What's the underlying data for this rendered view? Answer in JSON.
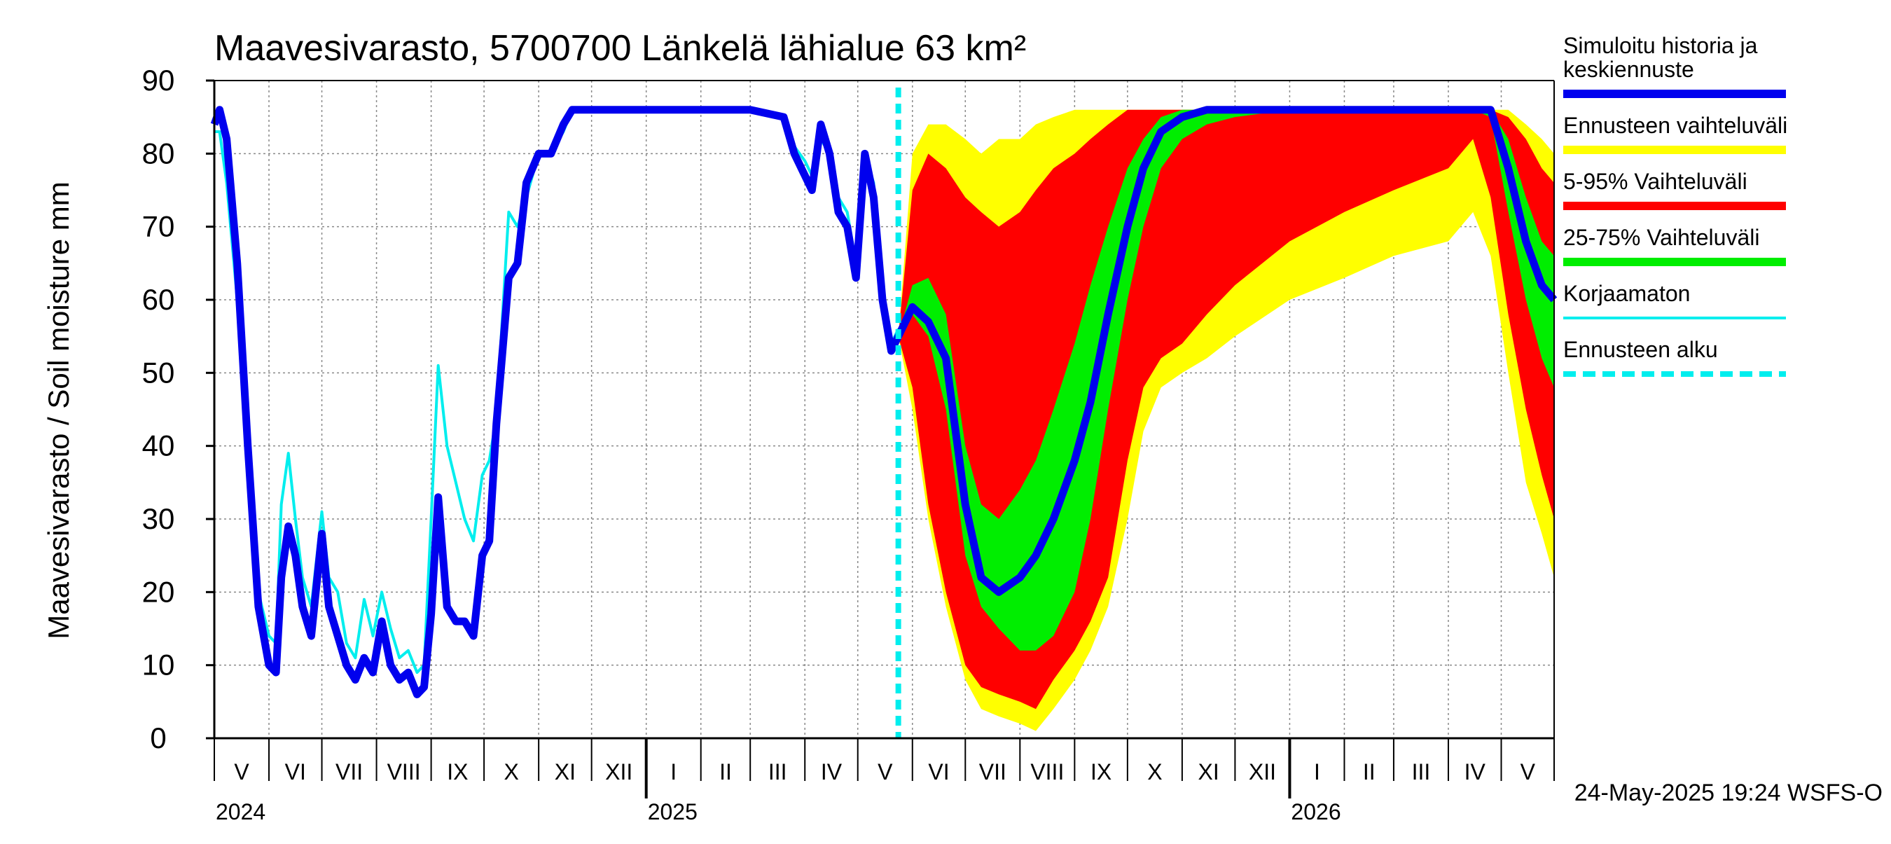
{
  "chart_data": {
    "type": "area",
    "title": "Maavesivarasto, 5700700 Länkelä lähialue 63 km²",
    "ylabel": "Maavesivarasto / Soil moisture   mm",
    "xlabel": "",
    "ylim": [
      0,
      90
    ],
    "xlim": [
      "2024-05-01",
      "2026-05-31"
    ],
    "grid": true,
    "y_ticks": [
      0,
      10,
      20,
      30,
      40,
      50,
      60,
      70,
      80,
      90
    ],
    "month_labels": [
      "V",
      "VI",
      "VII",
      "VIII",
      "IX",
      "X",
      "XI",
      "XII",
      "I",
      "II",
      "III",
      "IV",
      "V",
      "VI",
      "VII",
      "VIII",
      "IX",
      "X",
      "XI",
      "XII",
      "I",
      "II",
      "III",
      "IV",
      "V"
    ],
    "year_labels": [
      "2024",
      "2025",
      "2026"
    ],
    "forecast_start": "2025-05-24",
    "timestamp": "24-May-2025 19:24 WSFS-O",
    "colors": {
      "history": "#0000ee",
      "uncorrected": "#00eeee",
      "range_full": "#ffff00",
      "range_5_95": "#ff0000",
      "range_25_75": "#00ee00",
      "forecast_start": "#00eeee",
      "grid": "#888888"
    },
    "legend_position": "right",
    "legend": [
      {
        "label": "Simuloitu historia ja keskiennuste",
        "lines": [
          "Simuloitu historia ja",
          "keskiennuste"
        ],
        "color": "#0000ee",
        "style": "solid"
      },
      {
        "label": "Ennusteen vaihteluväli",
        "lines": [
          "Ennusteen vaihteluväli"
        ],
        "color": "#ffff00",
        "style": "solid"
      },
      {
        "label": "5-95% Vaihteluväli",
        "lines": [
          "5-95% Vaihteluväli"
        ],
        "color": "#ff0000",
        "style": "solid"
      },
      {
        "label": "25-75% Vaihteluväli",
        "lines": [
          "25-75% Vaihteluväli"
        ],
        "color": "#00ee00",
        "style": "solid"
      },
      {
        "label": "Korjaamaton",
        "lines": [
          "Korjaamaton"
        ],
        "color": "#00eeee",
        "style": "thin"
      },
      {
        "label": "Ennusteen alku",
        "lines": [
          "Ennusteen alku"
        ],
        "color": "#00eeee",
        "style": "dashed"
      }
    ],
    "history": {
      "x": [
        "2024-05-01",
        "2024-05-04",
        "2024-05-08",
        "2024-05-14",
        "2024-05-20",
        "2024-05-26",
        "2024-06-01",
        "2024-06-05",
        "2024-06-08",
        "2024-06-12",
        "2024-06-16",
        "2024-06-20",
        "2024-06-25",
        "2024-07-01",
        "2024-07-05",
        "2024-07-10",
        "2024-07-15",
        "2024-07-20",
        "2024-07-25",
        "2024-07-30",
        "2024-08-04",
        "2024-08-09",
        "2024-08-14",
        "2024-08-19",
        "2024-08-24",
        "2024-08-28",
        "2024-09-01",
        "2024-09-05",
        "2024-09-10",
        "2024-09-15",
        "2024-09-20",
        "2024-09-25",
        "2024-09-30",
        "2024-10-04",
        "2024-10-08",
        "2024-10-15",
        "2024-10-20",
        "2024-10-25",
        "2024-11-01",
        "2024-11-08",
        "2024-11-15",
        "2024-11-20",
        "2024-11-25",
        "2024-12-01",
        "2025-01-01",
        "2025-02-01",
        "2025-03-01",
        "2025-03-20",
        "2025-03-26",
        "2025-04-01",
        "2025-04-05",
        "2025-04-10",
        "2025-04-15",
        "2025-04-20",
        "2025-04-25",
        "2025-04-30",
        "2025-05-05",
        "2025-05-10",
        "2025-05-15",
        "2025-05-20",
        "2025-05-24"
      ],
      "y": [
        84,
        86,
        82,
        65,
        40,
        18,
        10,
        9,
        22,
        29,
        25,
        18,
        14,
        28,
        18,
        14,
        10,
        8,
        11,
        9,
        16,
        10,
        8,
        9,
        6,
        7,
        17,
        33,
        18,
        16,
        16,
        14,
        25,
        27,
        43,
        63,
        65,
        76,
        80,
        80,
        84,
        86,
        86,
        86,
        86,
        86,
        86,
        85,
        80,
        77,
        75,
        84,
        80,
        72,
        70,
        63,
        80,
        74,
        60,
        53,
        55
      ]
    },
    "uncorrected": {
      "x": [
        "2024-05-01",
        "2024-05-04",
        "2024-05-08",
        "2024-05-14",
        "2024-05-20",
        "2024-05-26",
        "2024-06-01",
        "2024-06-05",
        "2024-06-08",
        "2024-06-12",
        "2024-06-16",
        "2024-06-20",
        "2024-06-25",
        "2024-07-01",
        "2024-07-05",
        "2024-07-10",
        "2024-07-15",
        "2024-07-20",
        "2024-07-25",
        "2024-07-30",
        "2024-08-04",
        "2024-08-09",
        "2024-08-14",
        "2024-08-19",
        "2024-08-24",
        "2024-08-28",
        "2024-09-01",
        "2024-09-05",
        "2024-09-10",
        "2024-09-15",
        "2024-09-20",
        "2024-09-25",
        "2024-09-30",
        "2024-10-04",
        "2024-10-08",
        "2024-10-15",
        "2024-10-20",
        "2024-10-25",
        "2024-11-01",
        "2024-11-08",
        "2024-11-15",
        "2024-11-20",
        "2024-11-25",
        "2024-12-01",
        "2025-01-01",
        "2025-02-01",
        "2025-03-01",
        "2025-03-20",
        "2025-03-26",
        "2025-04-01",
        "2025-04-05",
        "2025-04-10",
        "2025-04-15",
        "2025-04-20",
        "2025-04-25",
        "2025-04-30",
        "2025-05-05",
        "2025-05-10",
        "2025-05-15",
        "2025-05-20",
        "2025-05-24"
      ],
      "y": [
        83,
        83,
        76,
        60,
        38,
        20,
        14,
        13,
        32,
        39,
        30,
        22,
        18,
        31,
        22,
        20,
        13,
        11,
        19,
        14,
        20,
        15,
        11,
        12,
        9,
        10,
        30,
        51,
        40,
        35,
        30,
        27,
        36,
        38,
        44,
        72,
        70,
        74,
        80,
        80,
        83,
        86,
        86,
        86,
        86,
        86,
        86,
        85,
        81,
        79,
        77,
        82,
        80,
        74,
        72,
        65,
        80,
        76,
        62,
        54,
        56
      ]
    },
    "forecast": {
      "x": [
        "2025-05-24",
        "2025-06-01",
        "2025-06-10",
        "2025-06-20",
        "2025-07-01",
        "2025-07-10",
        "2025-07-20",
        "2025-08-01",
        "2025-08-10",
        "2025-08-20",
        "2025-09-01",
        "2025-09-10",
        "2025-09-20",
        "2025-10-01",
        "2025-10-10",
        "2025-10-20",
        "2025-11-01",
        "2025-11-15",
        "2025-12-01",
        "2026-01-01",
        "2026-02-01",
        "2026-03-01",
        "2026-04-01",
        "2026-04-15",
        "2026-04-25",
        "2026-05-05",
        "2026-05-15",
        "2026-05-24",
        "2026-05-31"
      ],
      "min": [
        55,
        45,
        30,
        18,
        8,
        4,
        3,
        2,
        1,
        4,
        8,
        12,
        18,
        30,
        42,
        48,
        50,
        52,
        55,
        60,
        63,
        66,
        68,
        72,
        66,
        50,
        35,
        28,
        22
      ],
      "p05": [
        55,
        48,
        32,
        20,
        10,
        7,
        6,
        5,
        4,
        8,
        12,
        16,
        22,
        38,
        48,
        52,
        54,
        58,
        62,
        68,
        72,
        75,
        78,
        82,
        74,
        58,
        45,
        36,
        30
      ],
      "p25": [
        55,
        58,
        55,
        45,
        25,
        18,
        15,
        12,
        12,
        14,
        20,
        30,
        45,
        60,
        70,
        78,
        82,
        84,
        85,
        86,
        86,
        86,
        86,
        86,
        85,
        72,
        60,
        52,
        48
      ],
      "median": [
        55,
        59,
        57,
        52,
        32,
        22,
        20,
        22,
        25,
        30,
        38,
        46,
        58,
        70,
        78,
        83,
        85,
        86,
        86,
        86,
        86,
        86,
        86,
        86,
        86,
        78,
        68,
        62,
        60
      ],
      "p75": [
        55,
        62,
        63,
        58,
        40,
        32,
        30,
        34,
        38,
        45,
        54,
        62,
        70,
        78,
        82,
        85,
        86,
        86,
        86,
        86,
        86,
        86,
        86,
        86,
        86,
        82,
        74,
        68,
        66
      ],
      "p95": [
        55,
        75,
        80,
        78,
        74,
        72,
        70,
        72,
        75,
        78,
        80,
        82,
        84,
        86,
        86,
        86,
        86,
        86,
        86,
        86,
        86,
        86,
        86,
        86,
        86,
        85,
        82,
        78,
        76
      ],
      "max": [
        55,
        80,
        84,
        84,
        82,
        80,
        82,
        82,
        84,
        85,
        86,
        86,
        86,
        86,
        86,
        86,
        86,
        86,
        86,
        86,
        86,
        86,
        86,
        86,
        86,
        86,
        84,
        82,
        80
      ]
    }
  }
}
